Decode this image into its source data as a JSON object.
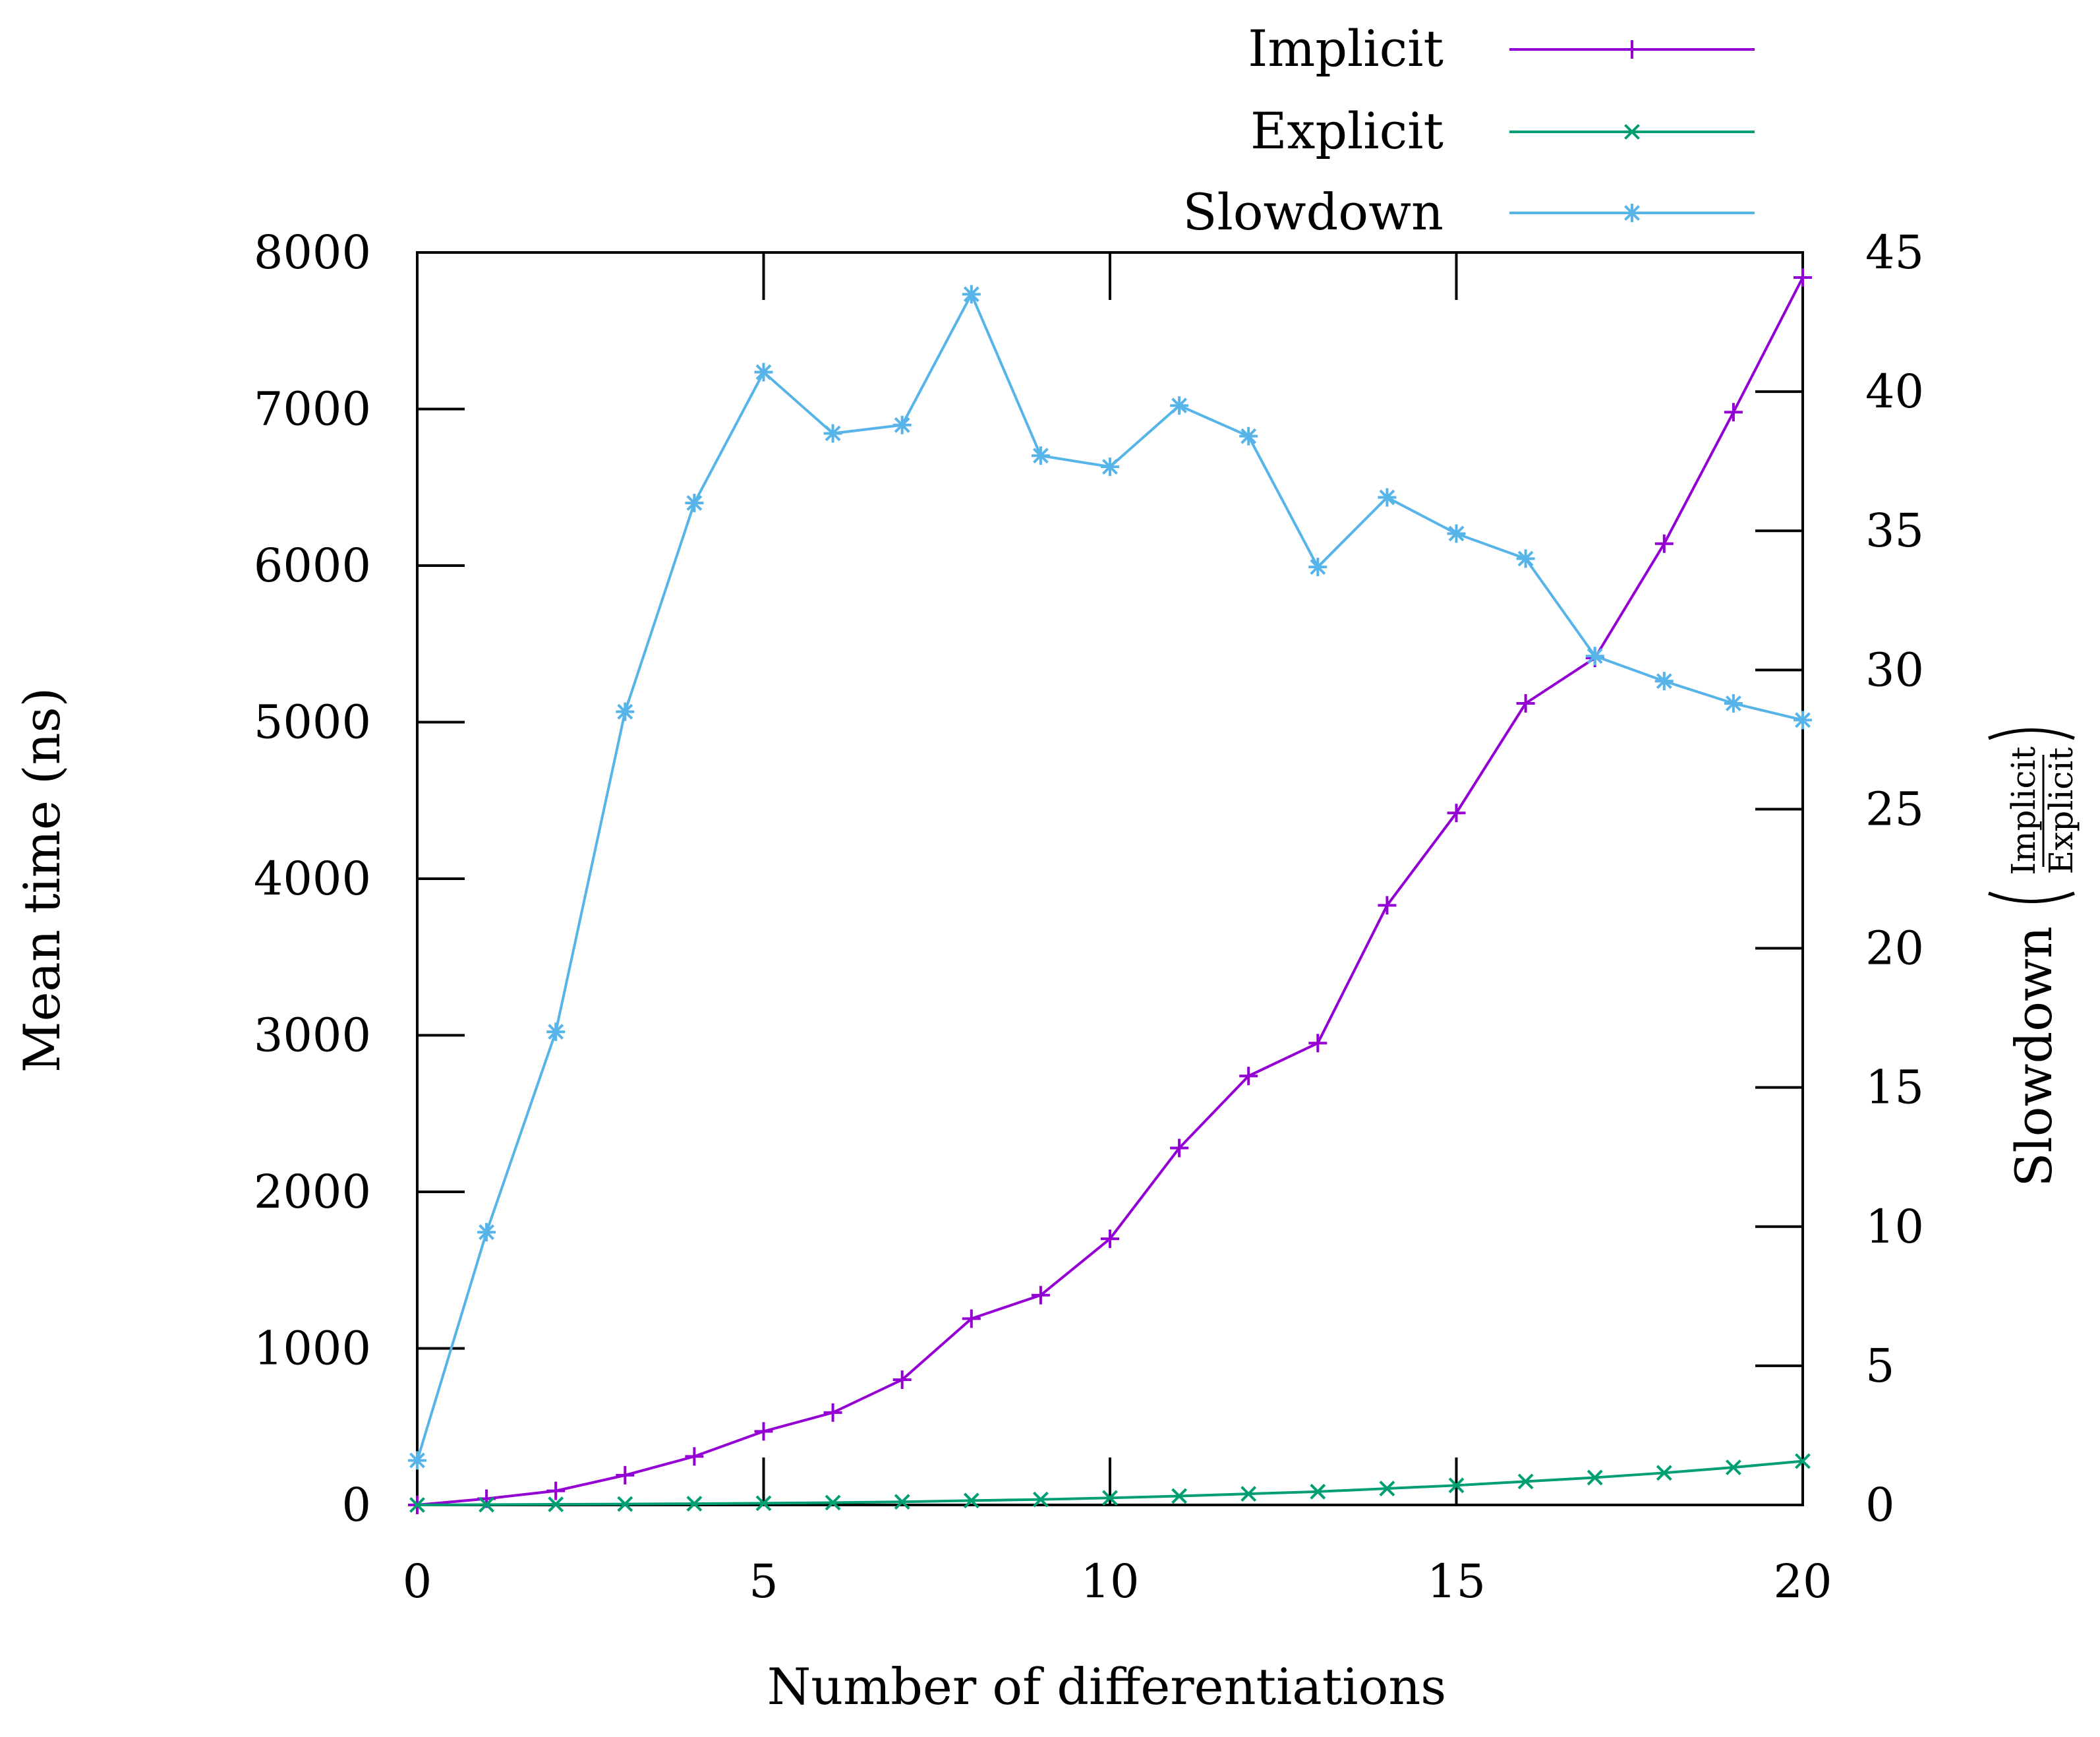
{
  "chart_data": {
    "type": "line",
    "xlabel": "Number of differentiations",
    "ylabel": "Mean time (ns)",
    "y2label": "Slowdown",
    "y2label_fraction": {
      "numerator": "Implicit",
      "denominator": "Explicit"
    },
    "xlim": [
      0,
      20
    ],
    "ylim": [
      0,
      8000
    ],
    "y2lim": [
      0,
      45
    ],
    "xticks": [
      "0",
      "5",
      "10",
      "15",
      "20"
    ],
    "yticks": [
      "0",
      "1000",
      "2000",
      "3000",
      "4000",
      "5000",
      "6000",
      "7000",
      "8000"
    ],
    "y2ticks": [
      "0",
      "5",
      "10",
      "15",
      "20",
      "25",
      "30",
      "35",
      "40",
      "45"
    ],
    "legend_position": "top-right, outside plot",
    "grid": false,
    "x": [
      0,
      1,
      2,
      3,
      4,
      5,
      6,
      7,
      8,
      9,
      10,
      11,
      12,
      13,
      14,
      15,
      16,
      17,
      18,
      19,
      20
    ],
    "series": [
      {
        "name": "Implicit",
        "axis": "left",
        "color": "#9400d3",
        "marker": "plus",
        "values": [
          0,
          40,
          90,
          190,
          310,
          470,
          590,
          800,
          1190,
          1340,
          1700,
          2280,
          2740,
          2950,
          3830,
          4420,
          5120,
          5410,
          6140,
          6980,
          7840
        ]
      },
      {
        "name": "Explicit",
        "axis": "left",
        "color": "#009e73",
        "marker": "cross",
        "values": [
          0,
          2,
          4,
          6,
          8,
          11,
          15,
          20,
          28,
          35,
          45,
          57,
          71,
          85,
          105,
          125,
          150,
          175,
          205,
          240,
          280
        ]
      },
      {
        "name": "Slowdown",
        "axis": "right",
        "color": "#56b4e9",
        "marker": "star",
        "values": [
          1.6,
          9.8,
          17,
          28.5,
          36,
          40.7,
          38.5,
          38.8,
          43.5,
          37.7,
          37.3,
          39.5,
          38.4,
          33.7,
          36.2,
          34.9,
          34,
          30.5,
          29.6,
          28.8,
          28.2
        ]
      }
    ]
  }
}
